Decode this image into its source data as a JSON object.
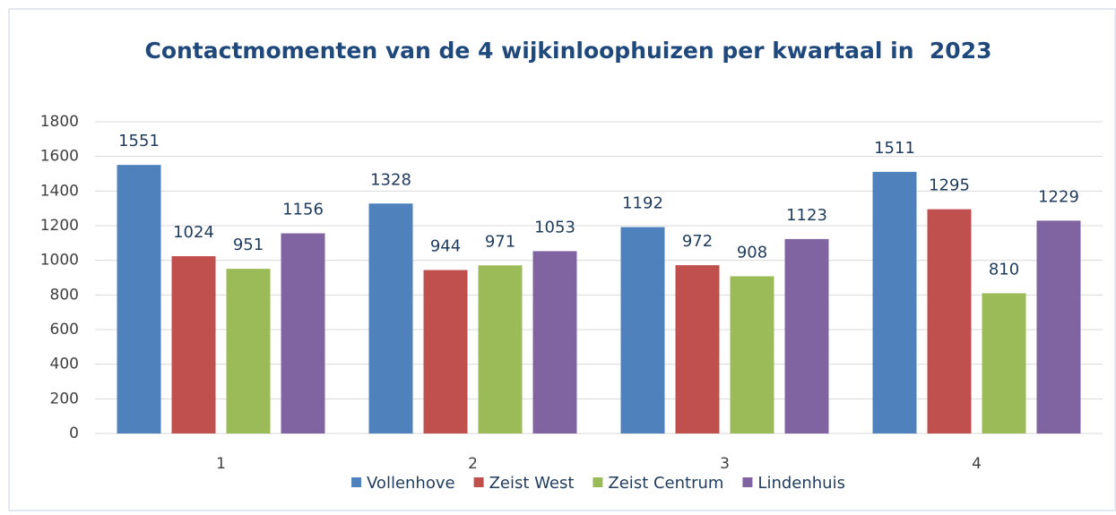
{
  "chart_data": {
    "type": "bar",
    "title": "Contactmomenten van de 4 wijkinloophuizen per kwartaal in  2023",
    "categories": [
      "1",
      "2",
      "3",
      "4"
    ],
    "series": [
      {
        "name": "Vollenhove",
        "color": "#4f81bd",
        "values": [
          1551,
          1328,
          1192,
          1511
        ]
      },
      {
        "name": "Zeist West",
        "color": "#c0504d",
        "values": [
          1024,
          944,
          972,
          1295
        ]
      },
      {
        "name": "Zeist Centrum",
        "color": "#9bbb59",
        "values": [
          951,
          971,
          908,
          810
        ]
      },
      {
        "name": "Lindenhuis",
        "color": "#8064a2",
        "values": [
          1156,
          1053,
          1123,
          1229
        ]
      }
    ],
    "ylim": [
      0,
      1800
    ],
    "yticks": [
      0,
      200,
      400,
      600,
      800,
      1000,
      1200,
      1400,
      1600,
      1800
    ],
    "grid": true,
    "legend": "bottom"
  }
}
